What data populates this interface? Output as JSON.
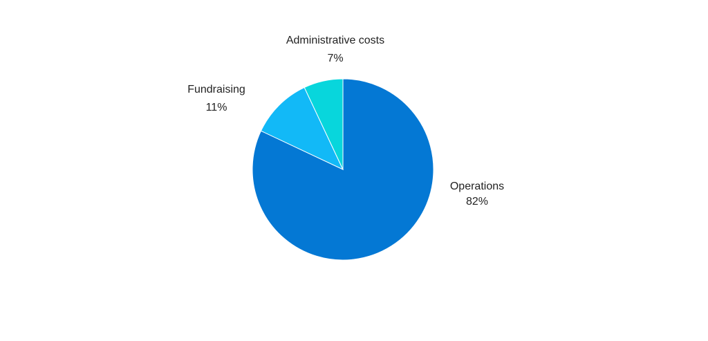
{
  "chart_data": {
    "type": "pie",
    "title": "",
    "slices": [
      {
        "label": "Operations",
        "value": 82,
        "display": "82%",
        "color": "#0478d4"
      },
      {
        "label": "Fundraising",
        "value": 11,
        "display": "11%",
        "color": "#12b9f7"
      },
      {
        "label": "Administrative costs",
        "value": 7,
        "display": "7%",
        "color": "#08d6dc"
      }
    ],
    "start_angle_deg": 0,
    "direction": "clockwise",
    "legend": "none",
    "data_labels": "outside"
  }
}
